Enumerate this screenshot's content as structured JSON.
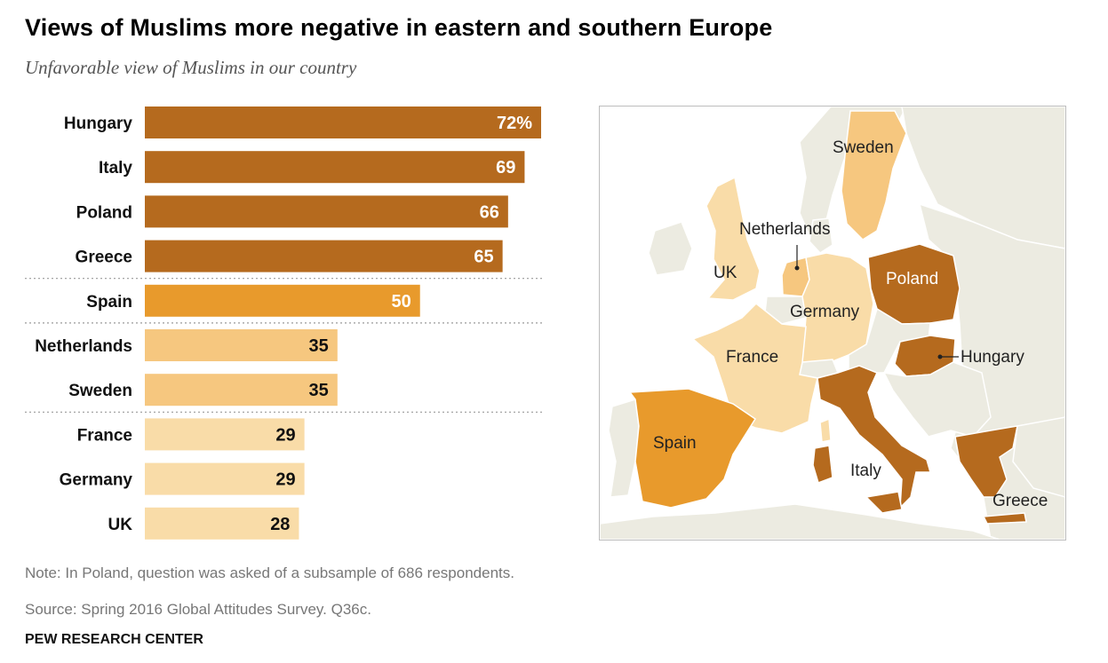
{
  "header": {
    "title": "Views of Muslims more negative in eastern and southern Europe",
    "subtitle": "Unfavorable view of Muslims in our country"
  },
  "chart_data": {
    "type": "bar",
    "orientation": "horizontal",
    "categories": [
      "Hungary",
      "Italy",
      "Poland",
      "Greece",
      "Spain",
      "Netherlands",
      "Sweden",
      "France",
      "Germany",
      "UK"
    ],
    "values": [
      72,
      69,
      66,
      65,
      50,
      35,
      35,
      29,
      29,
      28
    ],
    "value_labels": [
      "72%",
      "69",
      "66",
      "65",
      "50",
      "35",
      "35",
      "29",
      "29",
      "28"
    ],
    "unit": "%",
    "group_breaks_after": [
      "Greece",
      "Spain",
      "Sweden"
    ],
    "xlim": [
      0,
      100
    ],
    "grid": false,
    "colors": {
      "dark": "#b56a1e",
      "medium": "#e89a2c",
      "light": "#f6c77f",
      "lightest": "#f9dca8"
    },
    "bar_color_levels": [
      "dark",
      "dark",
      "dark",
      "dark",
      "medium",
      "light",
      "light",
      "lightest",
      "lightest",
      "lightest"
    ]
  },
  "map": {
    "labels": {
      "sweden": "Sweden",
      "netherlands": "Netherlands",
      "uk": "UK",
      "poland": "Poland",
      "germany": "Germany",
      "france": "France",
      "hungary": "Hungary",
      "spain": "Spain",
      "italy": "Italy",
      "greece": "Greece"
    },
    "colors": {
      "land": "#ecebe1",
      "border": "#ffffff",
      "dark": "#b56a1e",
      "medium": "#e89a2c",
      "light": "#f6c77f",
      "lightest": "#f9dca8"
    }
  },
  "footer": {
    "note": "Note: In Poland, question was asked of a subsample of 686 respondents.",
    "source": "Source: Spring 2016 Global Attitudes Survey. Q36c.",
    "brand": "PEW RESEARCH CENTER"
  }
}
